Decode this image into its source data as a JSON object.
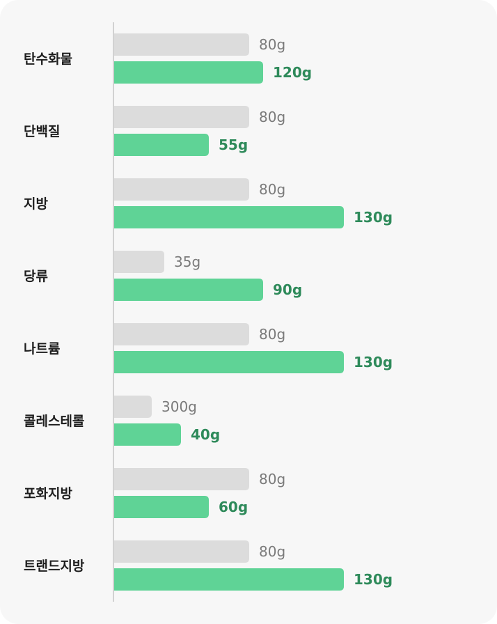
{
  "chart_data": {
    "type": "bar",
    "orientation": "horizontal",
    "categories": [
      "탄수화물",
      "단백질",
      "지방",
      "당류",
      "나트륨",
      "콜레스테롤",
      "포화지방",
      "트랜드지방"
    ],
    "series": [
      {
        "color": "#dcdcdc",
        "label_color": "#7a7a7a",
        "values": [
          80,
          80,
          80,
          35,
          80,
          300,
          80,
          80
        ],
        "labels": [
          "80g",
          "80g",
          "80g",
          "35g",
          "80g",
          "300g",
          "80g",
          "80g"
        ]
      },
      {
        "color": "#5fd396",
        "label_color": "#2e8a5a",
        "values": [
          120,
          55,
          130,
          90,
          130,
          40,
          60,
          130
        ],
        "labels": [
          "120g",
          "55g",
          "130g",
          "90g",
          "130g",
          "40g",
          "60g",
          "130g"
        ]
      }
    ],
    "unit": "g",
    "grid": false,
    "legend": "none"
  }
}
